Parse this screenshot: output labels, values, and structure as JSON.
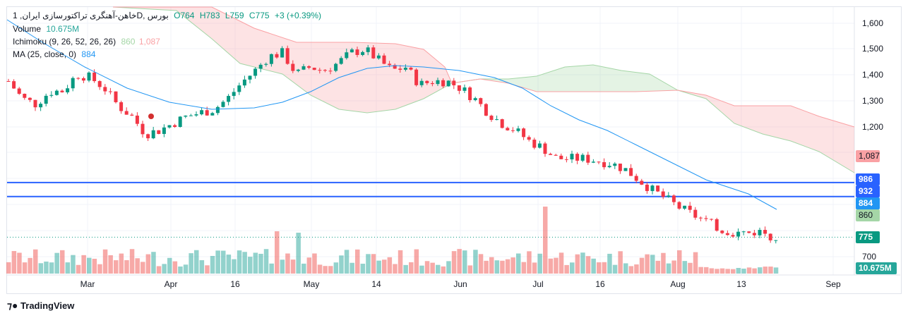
{
  "legend": {
    "symbol": "خاهن-آهنگری تراکتورسازی ایران, 1D, بورس",
    "open": "O764",
    "high": "H783",
    "low": "L759",
    "close": "C775",
    "change": "+3 (+0.39%)",
    "volume_label": "Volume",
    "volume_value": "10.675M",
    "ichimoku_label": "Ichimoku (9, 26, 52, 26, 26)",
    "ichimoku_a": "860",
    "ichimoku_b": "1,087",
    "ma_label": "MA (25, close, 0)",
    "ma_value": "884"
  },
  "y_ticks": [
    "1,600",
    "1,500",
    "1,400",
    "1,300",
    "1,200",
    "700"
  ],
  "x_ticks": [
    "Mar",
    "Apr",
    "16",
    "May",
    "14",
    "Jun",
    "Jul",
    "16",
    "Aug",
    "13",
    "Sep"
  ],
  "price_labels": {
    "ichimoku_b": "1,087",
    "line1": "986",
    "line2": "932",
    "ma": "884",
    "ichimoku_a": "860",
    "last": "775",
    "volume": "10.675M"
  },
  "colors": {
    "up": "#089981",
    "down": "#f23645",
    "ma": "#2196f3",
    "hline": "#2962ff",
    "cloud_up": "#a5d6a7",
    "cloud_down": "#faa1a4"
  },
  "logo": "TradingView",
  "chart_data": {
    "type": "candlestick",
    "ylim": [
      700,
      1600
    ],
    "horizontal_lines": [
      986,
      932
    ],
    "last_close": 775,
    "close_path": [
      1377,
      1310,
      1288,
      1336,
      1340,
      1404,
      1390,
      1350,
      1282,
      1241,
      1173,
      1187,
      1214,
      1241,
      1255,
      1268,
      1310,
      1370,
      1418,
      1472,
      1486,
      1404,
      1431,
      1418,
      1445,
      1486,
      1500,
      1458,
      1418,
      1431,
      1363,
      1377,
      1377,
      1350,
      1310,
      1255,
      1214,
      1187,
      1146,
      1119,
      1078,
      1078,
      1078,
      1070,
      1059,
      1037,
      996,
      956,
      923,
      888,
      860,
      833,
      806,
      792,
      792,
      798,
      773
    ]
  }
}
